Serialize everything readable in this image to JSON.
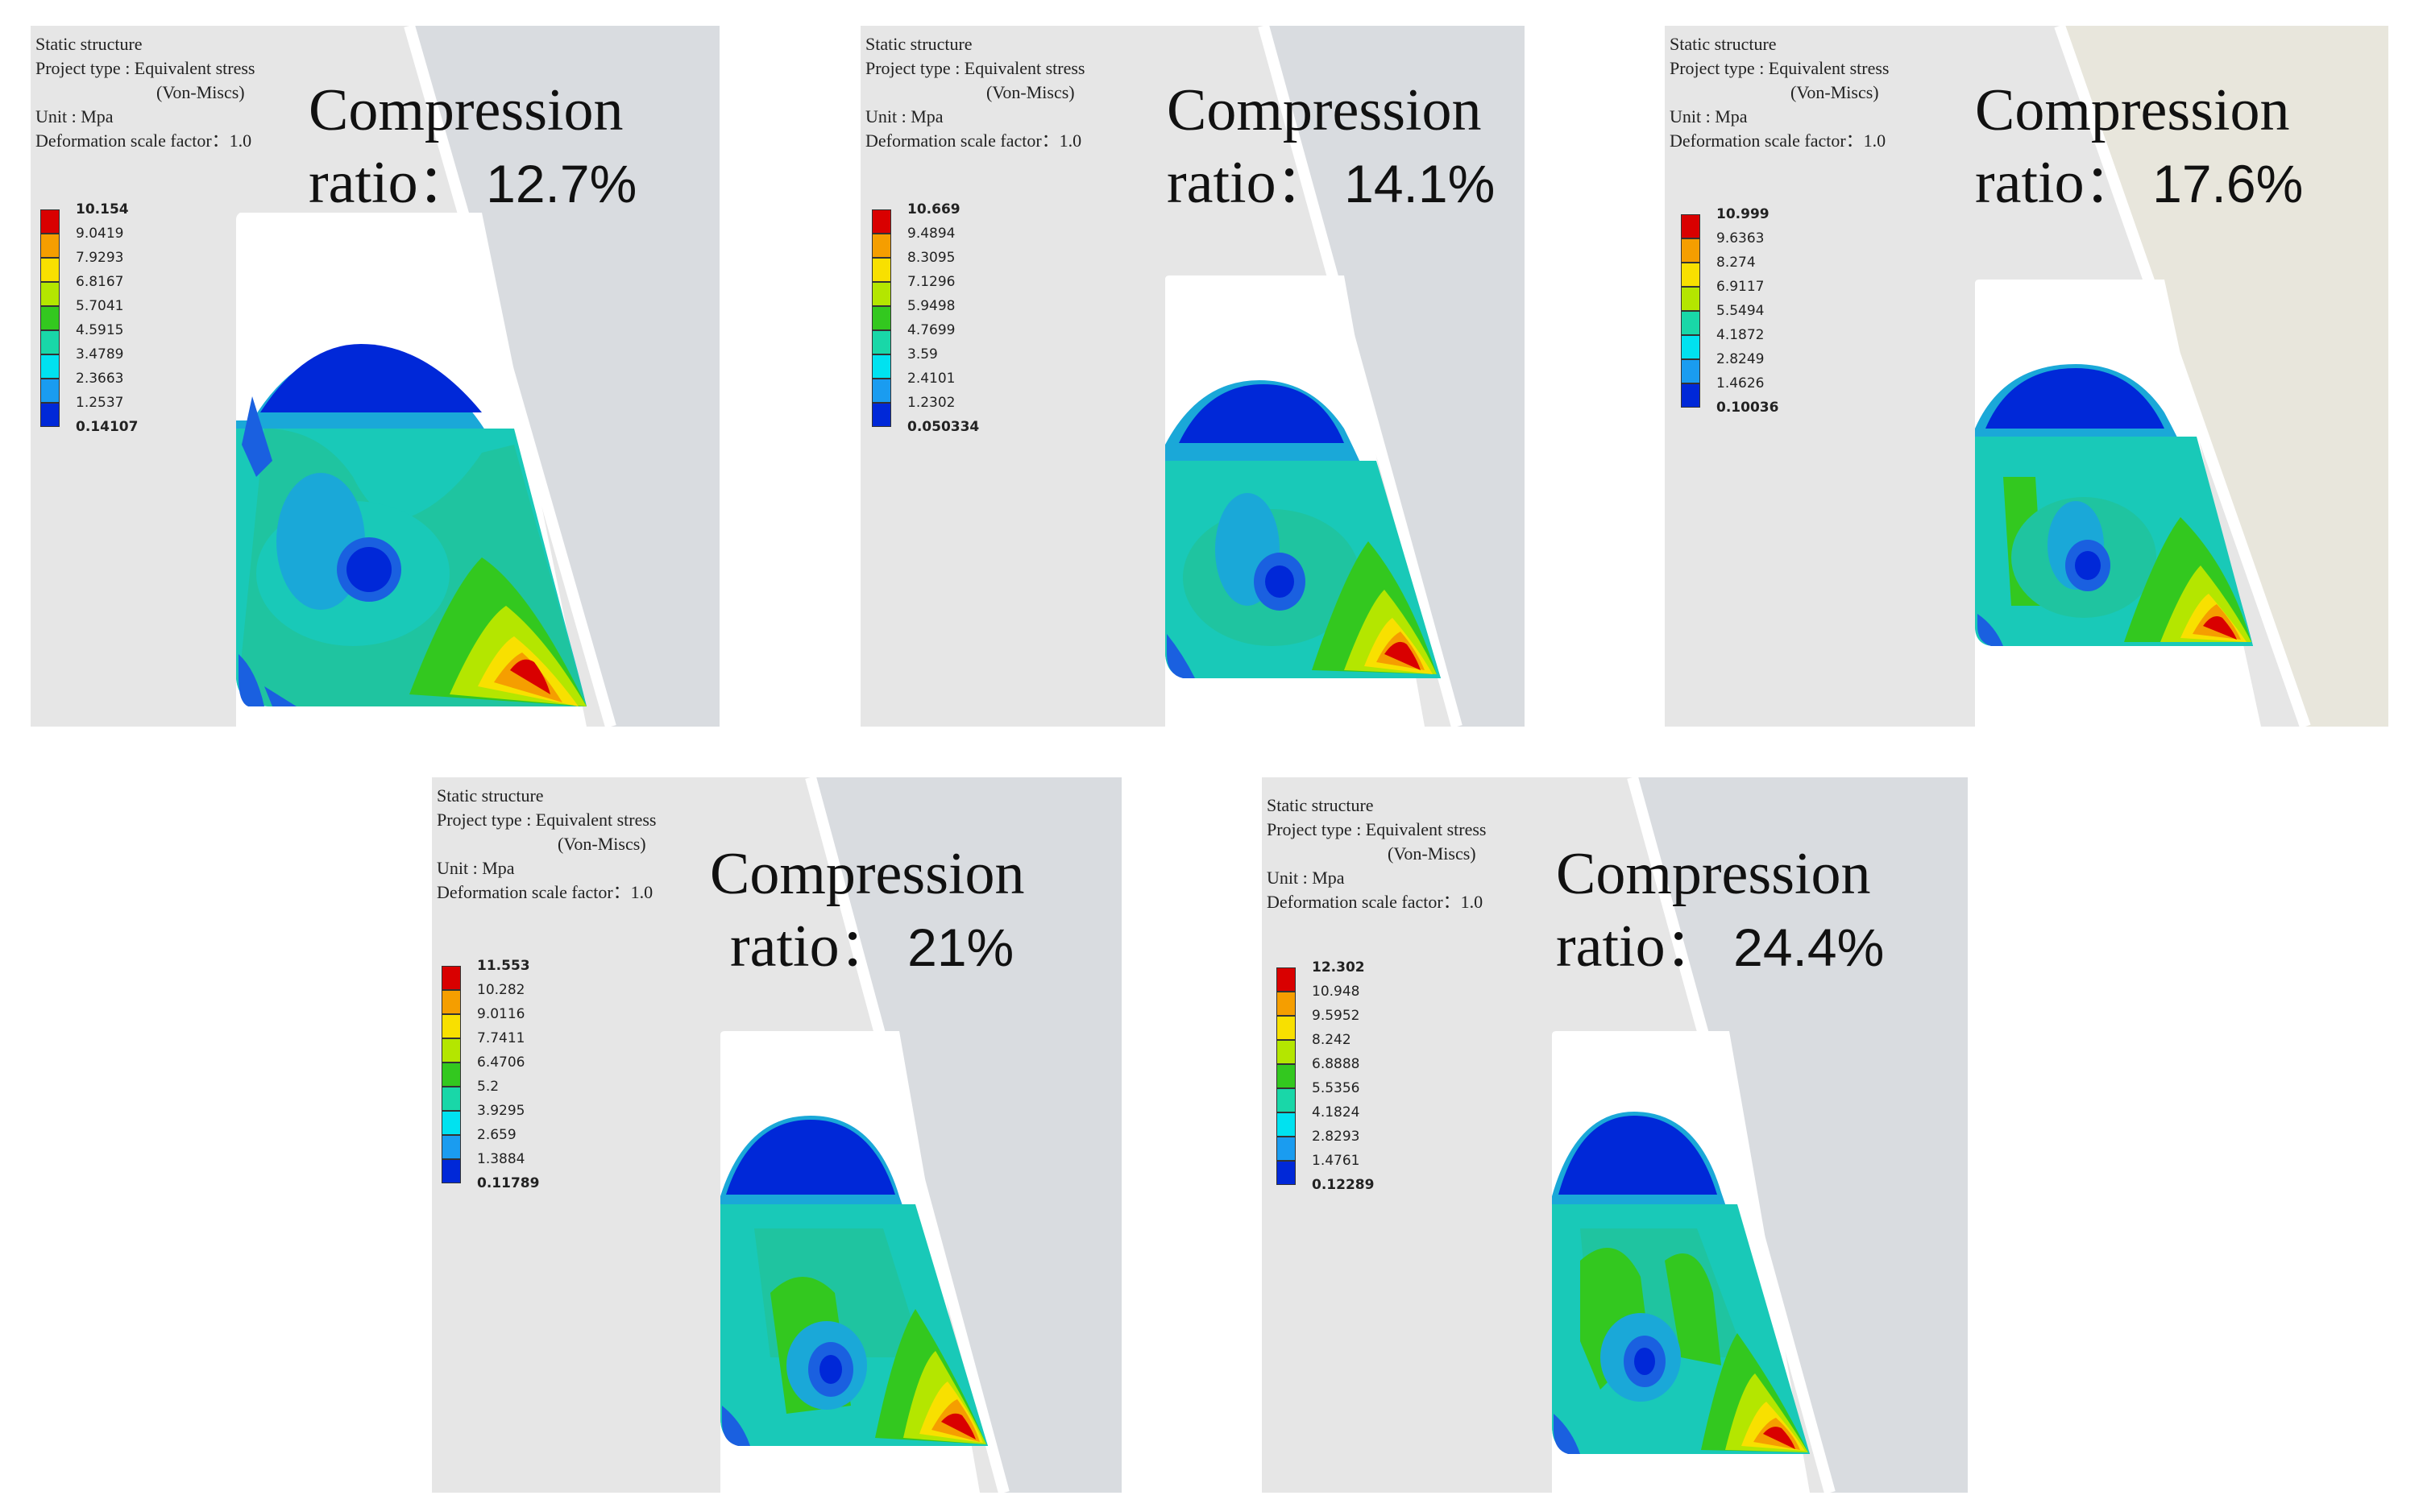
{
  "figure": {
    "header_lines": [
      "Static structure",
      "Project type : Equivalent stress",
      "(Von-Miscs)",
      "Unit : Mpa",
      "Deformation scale factor：1.0"
    ],
    "colormap": [
      "#d90000",
      "#f59e00",
      "#f8e000",
      "#b4e600",
      "#33c81f",
      "#19d7a8",
      "#00e2f0",
      "#1a9cf0",
      "#0028d8"
    ],
    "panels": [
      {
        "id": "12.7",
        "header": {
          "l1": "Static structure",
          "l2": "Project type : Equivalent stress",
          "l3": "(Von-Miscs)",
          "l4": "Unit : Mpa",
          "l5": "Deformation scale factor：1.0"
        },
        "title": {
          "word": "Compression",
          "ratio_word": "ratio",
          "sep": "：",
          "value": "12.7%"
        },
        "legend": [
          "10.154",
          "9.0419",
          "7.9293",
          "6.8167",
          "5.7041",
          "4.5915",
          "3.4789",
          "2.3663",
          "1.2537",
          "0.14107"
        ],
        "background": "#e6e6e6"
      },
      {
        "id": "14.1",
        "header": {
          "l1": "Static structure",
          "l2": "Project type : Equivalent stress",
          "l3": "(Von-Miscs)",
          "l4": "Unit : Mpa",
          "l5": "Deformation scale factor：1.0"
        },
        "title": {
          "word": "Compression",
          "ratio_word": "ratio",
          "sep": "：",
          "value": "14.1%"
        },
        "legend": [
          "10.669",
          "9.4894",
          "8.3095",
          "7.1296",
          "5.9498",
          "4.7699",
          "3.59",
          "2.4101",
          "1.2302",
          "0.050334"
        ],
        "background": "#e6e6e6"
      },
      {
        "id": "17.6",
        "header": {
          "l1": "Static structure",
          "l2": "Project type : Equivalent stress",
          "l3": "(Von-Miscs)",
          "l4": "Unit : Mpa",
          "l5": "Deformation scale factor：1.0"
        },
        "title": {
          "word": "Compression",
          "ratio_word": "ratio",
          "sep": "：",
          "value": "17.6%"
        },
        "legend": [
          "10.999",
          "9.6363",
          "8.274",
          "6.9117",
          "5.5494",
          "4.1872",
          "2.8249",
          "1.4626",
          "0.10036"
        ],
        "background": "#e6e6e6"
      },
      {
        "id": "21",
        "header": {
          "l1": "Static structure",
          "l2": "Project type : Equivalent stress",
          "l3": "(Von-Miscs)",
          "l4": "Unit : Mpa",
          "l5": "Deformation scale factor：1.0"
        },
        "title": {
          "word": "Compression",
          "ratio_word": "ratio",
          "sep": "：",
          "value": "21%"
        },
        "legend": [
          "11.553",
          "10.282",
          "9.0116",
          "7.7411",
          "6.4706",
          "5.2",
          "3.9295",
          "2.659",
          "1.3884",
          "0.11789"
        ],
        "background": "#e6e6e6"
      },
      {
        "id": "24.4",
        "header": {
          "l1": "Static structure",
          "l2": "Project type : Equivalent stress",
          "l3": "(Von-Miscs)",
          "l4": "Unit : Mpa",
          "l5": "Deformation scale factor：1.0"
        },
        "title": {
          "word": "Compression",
          "ratio_word": "ratio",
          "sep": "：",
          "value": "24.4%"
        },
        "legend": [
          "12.302",
          "10.948",
          "9.5952",
          "8.242",
          "6.8888",
          "5.5356",
          "4.1824",
          "2.8293",
          "1.4761",
          "0.12289"
        ],
        "background": "#e6e6e6"
      }
    ]
  }
}
